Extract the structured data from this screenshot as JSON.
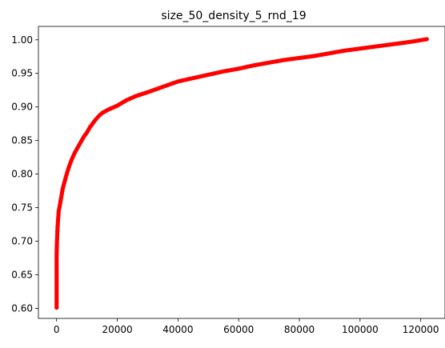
{
  "chart_data": {
    "type": "scatter",
    "title": "size_50_density_5_rnd_19",
    "xlabel": "",
    "ylabel": "",
    "xlim": [
      -6000,
      128000
    ],
    "ylim": [
      0.585,
      1.02
    ],
    "grid": false,
    "legend": "none",
    "marker_color": "#ff0000",
    "x_ticks": [
      0,
      20000,
      40000,
      60000,
      80000,
      100000,
      120000
    ],
    "x_tick_labels": [
      "0",
      "20000",
      "40000",
      "60000",
      "80000",
      "100000",
      "120000"
    ],
    "y_ticks": [
      0.6,
      0.65,
      0.7,
      0.75,
      0.8,
      0.85,
      0.9,
      0.95,
      1.0
    ],
    "y_tick_labels": [
      "0.60",
      "0.65",
      "0.70",
      "0.75",
      "0.80",
      "0.85",
      "0.90",
      "0.95",
      "1.00"
    ],
    "series": [
      {
        "points": [
          [
            0,
            0.601
          ],
          [
            0,
            0.612
          ],
          [
            0,
            0.624
          ],
          [
            0,
            0.637
          ],
          [
            0,
            0.656
          ],
          [
            0,
            0.662
          ],
          [
            0,
            0.67
          ],
          [
            0,
            0.68
          ],
          [
            100,
            0.698
          ],
          [
            200,
            0.708
          ],
          [
            300,
            0.72
          ],
          [
            500,
            0.733
          ],
          [
            700,
            0.745
          ],
          [
            1000,
            0.752
          ],
          [
            1500,
            0.765
          ],
          [
            2000,
            0.778
          ],
          [
            3000,
            0.795
          ],
          [
            4000,
            0.81
          ],
          [
            5000,
            0.822
          ],
          [
            6000,
            0.832
          ],
          [
            7000,
            0.84
          ],
          [
            8000,
            0.848
          ],
          [
            9000,
            0.856
          ],
          [
            10000,
            0.862
          ],
          [
            11000,
            0.87
          ],
          [
            12000,
            0.876
          ],
          [
            13000,
            0.882
          ],
          [
            14000,
            0.887
          ],
          [
            15000,
            0.891
          ],
          [
            17000,
            0.896
          ],
          [
            20000,
            0.902
          ],
          [
            23000,
            0.91
          ],
          [
            26000,
            0.916
          ],
          [
            30000,
            0.922
          ],
          [
            35000,
            0.93
          ],
          [
            40000,
            0.938
          ],
          [
            45000,
            0.943
          ],
          [
            50000,
            0.948
          ],
          [
            55000,
            0.953
          ],
          [
            60000,
            0.957
          ],
          [
            65000,
            0.962
          ],
          [
            70000,
            0.966
          ],
          [
            75000,
            0.97
          ],
          [
            80000,
            0.973
          ],
          [
            85000,
            0.976
          ],
          [
            90000,
            0.98
          ],
          [
            95000,
            0.984
          ],
          [
            100000,
            0.987
          ],
          [
            105000,
            0.99
          ],
          [
            110000,
            0.993
          ],
          [
            115000,
            0.996
          ],
          [
            118000,
            0.998
          ],
          [
            120000,
            0.9995
          ],
          [
            122000,
            1.001
          ]
        ]
      }
    ]
  }
}
